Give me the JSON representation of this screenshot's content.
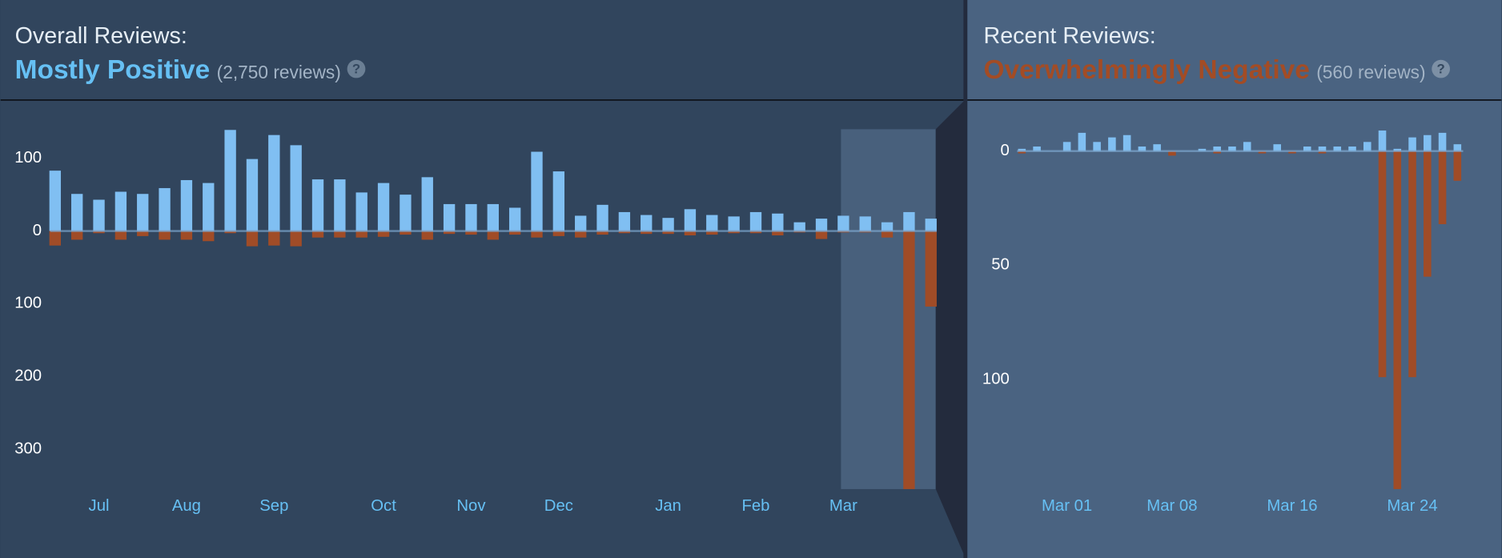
{
  "chart_data": [
    {
      "type": "bar",
      "title": "Overall Reviews:",
      "summary": "Mostly Positive",
      "summary_color": "#66c0f4",
      "review_count": "(2,750 reviews)",
      "help": "?",
      "categories": [
        null,
        null,
        "Jul",
        null,
        null,
        null,
        "Aug",
        null,
        null,
        null,
        "Sep",
        null,
        null,
        null,
        null,
        "Oct",
        null,
        null,
        null,
        "Nov",
        null,
        null,
        null,
        "Dec",
        null,
        null,
        null,
        null,
        "Jan",
        null,
        null,
        null,
        "Feb",
        null,
        null,
        null,
        "Mar",
        null,
        null,
        null,
        null
      ],
      "series": [
        {
          "color": "#80bff2",
          "values": [
            83,
            51,
            43,
            54,
            51,
            59,
            70,
            66,
            139,
            99,
            132,
            118,
            71,
            71,
            53,
            66,
            50,
            74,
            37,
            37,
            37,
            32,
            109,
            82,
            21,
            36,
            26,
            22,
            18,
            30,
            22,
            20,
            26,
            24,
            12,
            17,
            21,
            20,
            12,
            26,
            17
          ]
        },
        {
          "color": "#a04c27",
          "values": [
            -20,
            -12,
            -3,
            -12,
            -7,
            -12,
            -12,
            -14,
            -3,
            -21,
            -20,
            -21,
            -9,
            -9,
            -9,
            -8,
            -5,
            -12,
            -4,
            -5,
            -12,
            -5,
            -9,
            -7,
            -9,
            -5,
            -3,
            -4,
            -4,
            -6,
            -5,
            -3,
            -3,
            -6,
            -2,
            -11,
            -2,
            -2,
            -9,
            -355,
            -104
          ]
        }
      ],
      "ylim": [
        -355,
        140
      ],
      "yticks": [
        100,
        0,
        {
          "value": -100,
          "label": "100"
        },
        {
          "value": -200,
          "label": "200"
        },
        {
          "value": -300,
          "label": "300"
        }
      ],
      "grid": false
    },
    {
      "type": "bar",
      "title": "Recent Reviews:",
      "summary": "Overwhelmingly Negative",
      "summary_color": "#a34c25",
      "review_count": "(560 reviews)",
      "help": "?",
      "categories": [
        null,
        null,
        null,
        "Mar 01",
        null,
        null,
        null,
        null,
        null,
        null,
        "Mar 08",
        null,
        null,
        null,
        null,
        null,
        null,
        null,
        "Mar 16",
        null,
        null,
        null,
        null,
        null,
        null,
        null,
        "Mar 24",
        null,
        null,
        null
      ],
      "series": [
        {
          "color": "#80bff2",
          "values": [
            1,
            2,
            0,
            4,
            8,
            4,
            6,
            7,
            2,
            3,
            0,
            0,
            1,
            2,
            2,
            4,
            0,
            3,
            0,
            2,
            2,
            2,
            2,
            4,
            9,
            1,
            6,
            7,
            8,
            3
          ]
        },
        {
          "color": "#a04c27",
          "values": [
            -1,
            0,
            0,
            0,
            0,
            0,
            0,
            0,
            0,
            0,
            -2,
            0,
            0,
            -1,
            0,
            0,
            -1,
            0,
            -1,
            0,
            -1,
            0,
            0,
            0,
            -99,
            -148,
            -99,
            -55,
            -32,
            -13
          ]
        }
      ],
      "ylim": [
        -148,
        10
      ],
      "yticks": [
        0,
        {
          "value": -50,
          "label": "50"
        },
        {
          "value": -100,
          "label": "100"
        }
      ],
      "grid": false
    }
  ]
}
